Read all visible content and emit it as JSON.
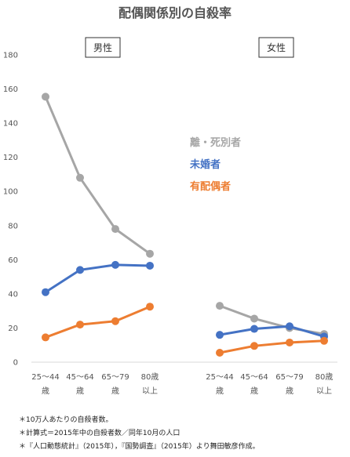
{
  "chart_data": {
    "type": "line",
    "title": "配偶関係別の自殺率",
    "ylim": [
      0,
      180
    ],
    "y_ticks": [
      0,
      20,
      40,
      60,
      80,
      100,
      120,
      140,
      160,
      180
    ],
    "categories": [
      [
        "25〜44",
        "歳"
      ],
      [
        "45〜64",
        "歳"
      ],
      [
        "65〜79",
        "歳"
      ],
      [
        "80歳",
        "以上"
      ]
    ],
    "groups": [
      {
        "label": "男性",
        "series": [
          {
            "name": "離・死別者",
            "color": "#a6a6a6",
            "values": [
              155.5,
              108,
              78,
              63.5
            ]
          },
          {
            "name": "未婚者",
            "color": "#4472c4",
            "values": [
              41,
              54,
              57,
              56.5
            ]
          },
          {
            "name": "有配偶者",
            "color": "#ed7d31",
            "values": [
              14.5,
              22,
              24,
              32.5
            ]
          }
        ]
      },
      {
        "label": "女性",
        "series": [
          {
            "name": "離・死別者",
            "color": "#a6a6a6",
            "values": [
              33,
              25.5,
              20,
              16.5
            ]
          },
          {
            "name": "未婚者",
            "color": "#4472c4",
            "values": [
              16,
              19.5,
              21,
              15
            ]
          },
          {
            "name": "有配偶者",
            "color": "#ed7d31",
            "values": [
              5.5,
              9.5,
              11.5,
              12.5
            ]
          }
        ]
      }
    ],
    "legend": [
      {
        "name": "離・死別者",
        "color": "#a6a6a6"
      },
      {
        "name": "未婚者",
        "color": "#4472c4"
      },
      {
        "name": "有配偶者",
        "color": "#ed7d31"
      }
    ],
    "notes": [
      "＊10万人あたりの自殺者数。",
      "＊計算式＝2015年中の自殺者数／同年10月の人口",
      "＊『人口動態統計』（2015年），『国勢調査』（2015年）より舞田敏彦作成。"
    ]
  }
}
